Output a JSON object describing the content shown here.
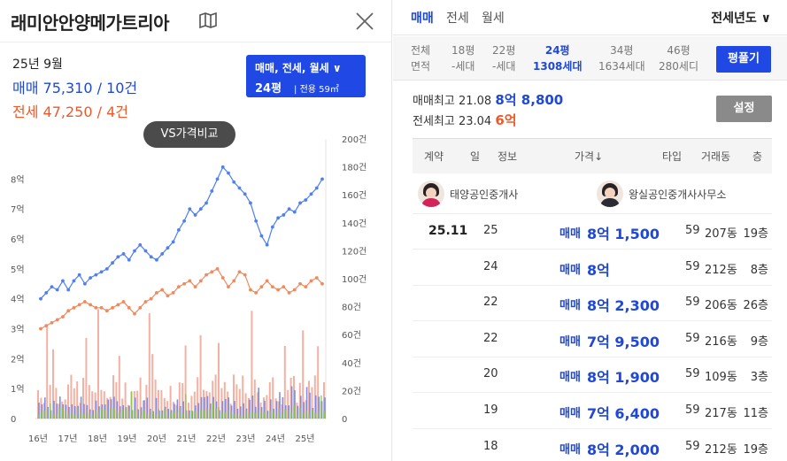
{
  "header": {
    "title": "래미안안양메가트리아",
    "icons": {
      "map": "map-icon",
      "close": "close-icon"
    }
  },
  "summary": {
    "month": "25년 9월",
    "sale": "매매 75,310 / 10건",
    "jeonse": "전세 47,250 / 4건"
  },
  "filter": {
    "types": "매매, 전세, 월세",
    "size": "24평",
    "area": "전용 59㎡"
  },
  "vs_button": "VS가격비교",
  "chart_data": {
    "type": "line",
    "x_labels": [
      "16년",
      "17년",
      "18년",
      "19년",
      "20년",
      "21년",
      "22년",
      "23년",
      "24년",
      "25년"
    ],
    "y_left_labels": [
      "0",
      "1억",
      "2억",
      "3억",
      "4억",
      "5억",
      "6억",
      "7억",
      "8억"
    ],
    "y_right_labels": [
      "0",
      "20건",
      "40건",
      "60건",
      "80건",
      "100건",
      "120건",
      "140건",
      "160건",
      "180건",
      "200건"
    ],
    "ylim_left": [
      0,
      8.7
    ],
    "ylim_right": [
      0,
      200
    ],
    "colors": {
      "sale": "#4f7ff0",
      "jeonse": "#f08a5d",
      "vol_sale": "#6f83e6",
      "vol_jeonse": "#f2a292",
      "vol_rent": "#8bc64a"
    },
    "series": [
      {
        "name": "매매",
        "values": [
          4.0,
          4.2,
          4.4,
          4.3,
          4.6,
          4.3,
          4.6,
          4.8,
          4.5,
          4.7,
          4.8,
          4.9,
          5.0,
          5.2,
          5.4,
          5.5,
          5.3,
          5.6,
          5.8,
          5.6,
          5.4,
          5.3,
          5.5,
          5.7,
          5.9,
          6.3,
          6.6,
          7.0,
          6.8,
          7.0,
          7.2,
          7.6,
          8.0,
          8.4,
          8.2,
          7.9,
          7.7,
          7.5,
          7.2,
          6.6,
          6.1,
          5.8,
          6.4,
          6.7,
          6.8,
          7.0,
          6.9,
          7.2,
          7.3,
          7.5,
          7.7,
          8.0
        ]
      },
      {
        "name": "전세",
        "values": [
          3.0,
          3.1,
          3.2,
          3.3,
          3.4,
          3.6,
          3.7,
          3.8,
          3.9,
          3.8,
          3.7,
          3.7,
          3.6,
          3.7,
          3.8,
          3.9,
          3.7,
          3.5,
          3.7,
          3.9,
          4.0,
          4.2,
          4.3,
          4.1,
          4.2,
          4.4,
          4.5,
          4.6,
          4.4,
          4.6,
          4.8,
          4.9,
          5.0,
          4.7,
          4.4,
          4.6,
          4.9,
          4.8,
          4.3,
          4.2,
          4.4,
          4.6,
          4.4,
          4.3,
          4.4,
          4.2,
          4.3,
          4.5,
          4.4,
          4.6,
          4.7,
          4.5
        ]
      }
    ]
  },
  "right": {
    "tabs": [
      "매매",
      "전세",
      "월세"
    ],
    "year_select": "전세년도",
    "sizes": [
      {
        "top": "전체",
        "bottom": "면적"
      },
      {
        "top": "18평",
        "bottom": "-세대"
      },
      {
        "top": "22평",
        "bottom": "-세대"
      },
      {
        "top": "24평",
        "bottom": "1308세대"
      },
      {
        "top": "34평",
        "bottom": "1634세대"
      },
      {
        "top": "46평",
        "bottom": "280세디"
      }
    ],
    "pyung_button": "평풀기",
    "sale_max": {
      "label": "매매최고",
      "date": "21.08",
      "price": "8억 8,800"
    },
    "jeonse_max": {
      "label": "전세최고",
      "date": "23.04",
      "price": "6억"
    },
    "setting_button": "설정",
    "headers": [
      "계약",
      "일",
      "정보",
      "가격↓",
      "타입",
      "거래동",
      "층"
    ],
    "agents": [
      "태양공인중개사",
      "왕실공인중개사사무소"
    ],
    "rows": [
      {
        "ym": "25.11",
        "day": "25",
        "type": "매매",
        "price": "8억 1,500",
        "size": "59",
        "dong": "207동",
        "floor": "19층"
      },
      {
        "ym": "",
        "day": "24",
        "type": "매매",
        "price": "8억",
        "size": "59",
        "dong": "212동",
        "floor": "8층"
      },
      {
        "ym": "",
        "day": "22",
        "type": "매매",
        "price": "8억 2,300",
        "size": "59",
        "dong": "206동",
        "floor": "26층"
      },
      {
        "ym": "",
        "day": "22",
        "type": "매매",
        "price": "7억 9,500",
        "size": "59",
        "dong": "216동",
        "floor": "9층"
      },
      {
        "ym": "",
        "day": "20",
        "type": "매매",
        "price": "8억 1,900",
        "size": "59",
        "dong": "109동",
        "floor": "3층"
      },
      {
        "ym": "",
        "day": "19",
        "type": "매매",
        "price": "7억 6,400",
        "size": "59",
        "dong": "217동",
        "floor": "11층"
      },
      {
        "ym": "",
        "day": "18",
        "type": "매매",
        "price": "8억 2,000",
        "size": "59",
        "dong": "212동",
        "floor": "19층"
      }
    ]
  }
}
